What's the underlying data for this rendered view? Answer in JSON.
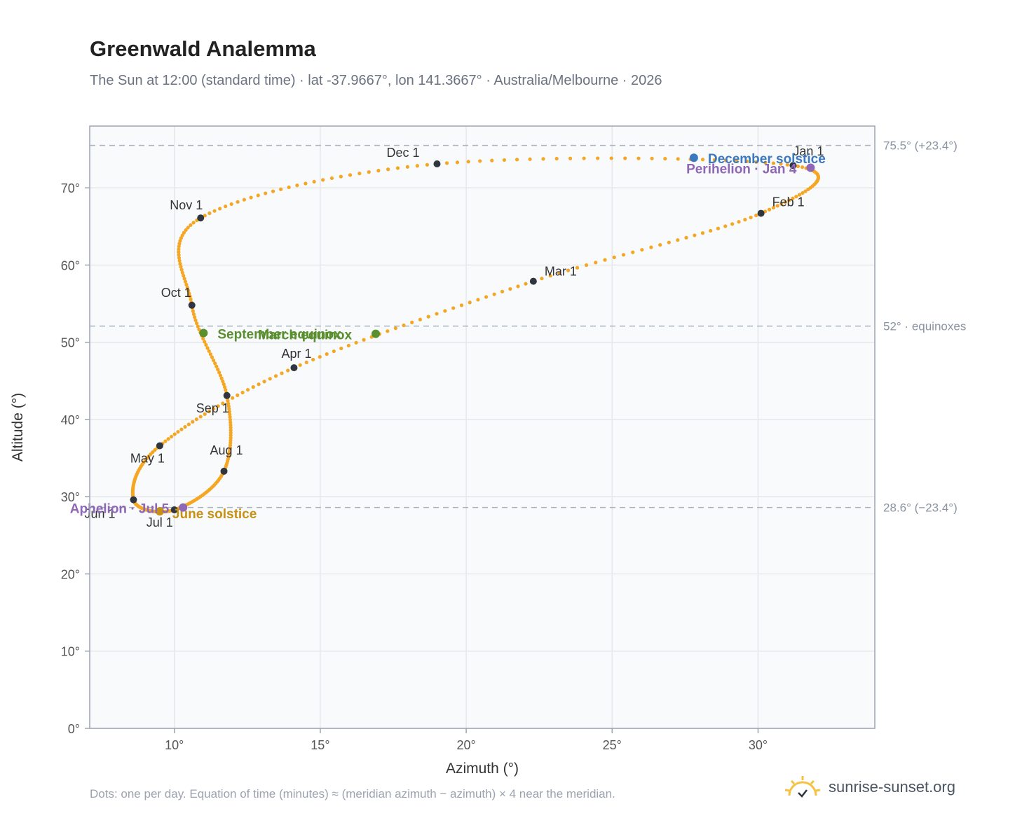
{
  "header": {
    "title": "Greenwald Analemma",
    "subtitle": "The Sun at 12:00 (standard time) · lat -37.9667°, lon 141.3667° · Australia/Melbourne · 2026"
  },
  "footer": {
    "note": "Dots: one per day. Equation of time (minutes) ≈ (meridian azimuth − azimuth) × 4 near the meridian.",
    "brand": "sunrise-sunset.org"
  },
  "colors": {
    "curve": "#f5a623",
    "month_marker": "#2f3640",
    "march_sept_equinox": "#5a8f2f",
    "december_solstice": "#3b78c0",
    "june_solstice": "#c89114",
    "perihelion_aphelion": "#8e67b6",
    "plot_background": "#f8fafc",
    "grid": "#e5e7eb",
    "reference_line": "#aab4c0"
  },
  "chart_data": {
    "type": "scatter",
    "xlabel": "Azimuth (°)",
    "ylabel": "Altitude (°)",
    "xlim": [
      7.1,
      34.0
    ],
    "ylim": [
      0,
      78
    ],
    "grid": true,
    "x_ticks": [
      {
        "value": 10,
        "label": "10°"
      },
      {
        "value": 15,
        "label": "15°"
      },
      {
        "value": 20,
        "label": "20°"
      },
      {
        "value": 25,
        "label": "25°"
      },
      {
        "value": 30,
        "label": "30°"
      }
    ],
    "y_ticks": [
      {
        "value": 0,
        "label": "0°"
      },
      {
        "value": 10,
        "label": "10°"
      },
      {
        "value": 20,
        "label": "20°"
      },
      {
        "value": 30,
        "label": "30°"
      },
      {
        "value": 40,
        "label": "40°"
      },
      {
        "value": 50,
        "label": "50°"
      },
      {
        "value": 60,
        "label": "60°"
      },
      {
        "value": 70,
        "label": "70°"
      }
    ],
    "reference_lines": [
      {
        "altitude": 75.5,
        "label": "75.5° (+23.4°)"
      },
      {
        "altitude": 52.1,
        "label": "52° · equinoxes"
      },
      {
        "altitude": 28.6,
        "label": "28.6° (−23.4°)"
      }
    ],
    "month_points": [
      {
        "label": "Jan 1",
        "azimuth": 31.2,
        "altitude": 72.9
      },
      {
        "label": "Feb 1",
        "azimuth": 30.1,
        "altitude": 66.7
      },
      {
        "label": "Mar 1",
        "azimuth": 22.3,
        "altitude": 57.9
      },
      {
        "label": "Apr 1",
        "azimuth": 14.1,
        "altitude": 46.7
      },
      {
        "label": "May 1",
        "azimuth": 9.5,
        "altitude": 36.6
      },
      {
        "label": "Jun 1",
        "azimuth": 8.6,
        "altitude": 29.6
      },
      {
        "label": "Jul 1",
        "azimuth": 10.0,
        "altitude": 28.3
      },
      {
        "label": "Aug 1",
        "azimuth": 11.7,
        "altitude": 33.3
      },
      {
        "label": "Sep 1",
        "azimuth": 11.8,
        "altitude": 43.1
      },
      {
        "label": "Oct 1",
        "azimuth": 10.6,
        "altitude": 54.8
      },
      {
        "label": "Nov 1",
        "azimuth": 10.9,
        "altitude": 66.1
      },
      {
        "label": "Dec 1",
        "azimuth": 19.0,
        "altitude": 73.1
      }
    ],
    "events": [
      {
        "label": "March equinox",
        "azimuth": 16.9,
        "altitude": 51.1,
        "color": "#5a8f2f"
      },
      {
        "label": "September equinox",
        "azimuth": 11.0,
        "altitude": 51.2,
        "color": "#5a8f2f"
      },
      {
        "label": "December solstice",
        "azimuth": 27.8,
        "altitude": 73.9,
        "color": "#3b78c0"
      },
      {
        "label": "June solstice",
        "azimuth": 9.5,
        "altitude": 28.1,
        "color": "#c89114"
      },
      {
        "label": "Perihelion · Jan 4",
        "azimuth": 31.8,
        "altitude": 72.6,
        "color": "#8e67b6"
      },
      {
        "label": "Aphelion · Jul 5",
        "azimuth": 10.3,
        "altitude": 28.6,
        "color": "#8e67b6"
      }
    ]
  }
}
